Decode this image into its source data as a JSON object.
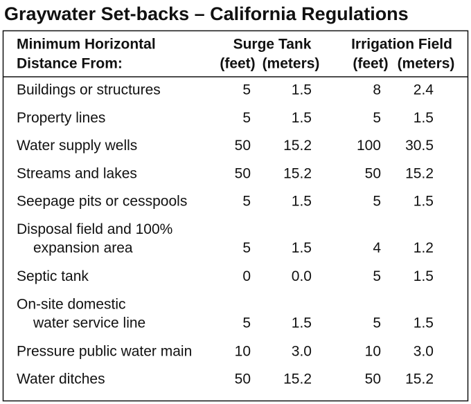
{
  "title": "Graywater Set-backs – California Regulations",
  "table": {
    "header": {
      "label": [
        "Minimum Horizontal",
        "Distance From:"
      ],
      "groups": [
        "Surge Tank",
        "Irrigation Field"
      ],
      "units": [
        "(feet)",
        "(meters)",
        "(feet)",
        "(meters)"
      ]
    },
    "rows": [
      {
        "label": [
          "Buildings or structures"
        ],
        "values": [
          "5",
          "1.5",
          "8",
          "2.4"
        ]
      },
      {
        "label": [
          "Property lines"
        ],
        "values": [
          "5",
          "1.5",
          "5",
          "1.5"
        ]
      },
      {
        "label": [
          "Water supply wells"
        ],
        "values": [
          "50",
          "15.2",
          "100",
          "30.5"
        ]
      },
      {
        "label": [
          "Streams and lakes"
        ],
        "values": [
          "50",
          "15.2",
          "50",
          "15.2"
        ]
      },
      {
        "label": [
          "Seepage pits or cesspools"
        ],
        "values": [
          "5",
          "1.5",
          "5",
          "1.5"
        ]
      },
      {
        "label": [
          "Disposal field and 100%",
          "expansion area"
        ],
        "values": [
          "5",
          "1.5",
          "4",
          "1.2"
        ]
      },
      {
        "label": [
          "Septic tank"
        ],
        "values": [
          "0",
          "0.0",
          "5",
          "1.5"
        ]
      },
      {
        "label": [
          "On-site domestic",
          "water service line"
        ],
        "values": [
          "5",
          "1.5",
          "5",
          "1.5"
        ]
      },
      {
        "label": [
          "Pressure public water main"
        ],
        "values": [
          "10",
          "3.0",
          "10",
          "3.0"
        ]
      },
      {
        "label": [
          "Water ditches"
        ],
        "values": [
          "50",
          "15.2",
          "50",
          "15.2"
        ]
      }
    ]
  }
}
